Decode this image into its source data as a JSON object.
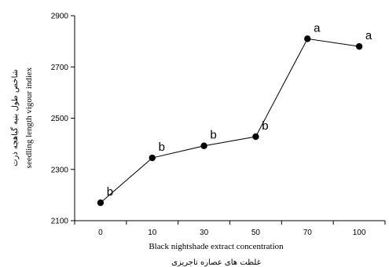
{
  "chart_data": {
    "type": "line",
    "categories": [
      "0",
      "10",
      "30",
      "50",
      "70",
      "100"
    ],
    "values": [
      2170,
      2345,
      2392,
      2428,
      2810,
      2780
    ],
    "significance_letters": [
      "b",
      "b",
      "b",
      "b",
      "a",
      "a"
    ],
    "xlabel": "Black nightshade extract concentration",
    "xlabel_secondary": "غلظت های عصاره تاجریزی",
    "ylabel": "seedling length vigour indiex",
    "ylabel_secondary": "شاخص طول بنیه گیاهچه ذرت",
    "ylim": [
      2100,
      2900
    ],
    "yticks": [
      2100,
      2300,
      2500,
      2700,
      2900
    ],
    "grid": false,
    "legend": "none"
  },
  "colors": {
    "line": "#000000",
    "marker": "#000000"
  }
}
